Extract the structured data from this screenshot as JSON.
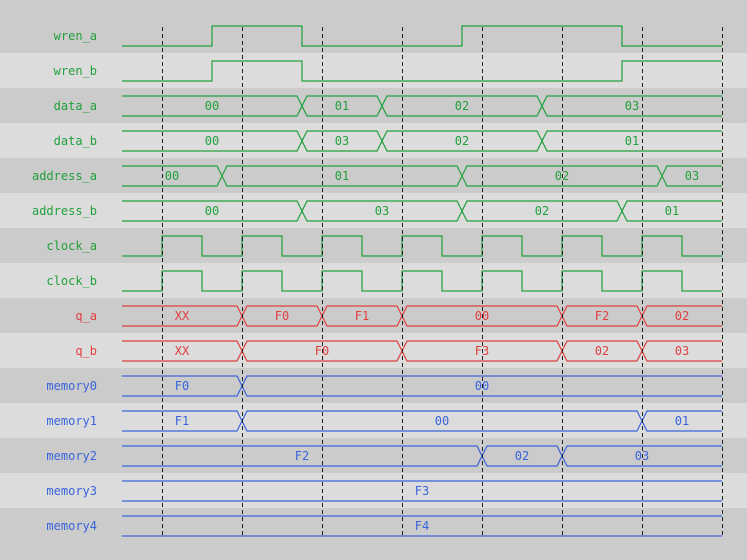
{
  "time_range": [
    0,
    15
  ],
  "grid_times": [
    1,
    3,
    5,
    7,
    9,
    11,
    13,
    15
  ],
  "colors": {
    "control": "#22a03c",
    "output": "#e04040",
    "memory": "#3a64dc",
    "row_dark": "#cbcbcb",
    "row_light": "#dcdcdc",
    "grid": "#202020"
  },
  "signals": [
    {
      "name": "wren_a",
      "group": "control",
      "type": "bit",
      "edges": [
        [
          0,
          0
        ],
        [
          2.25,
          1
        ],
        [
          4.5,
          0
        ],
        [
          8.5,
          1
        ],
        [
          12.5,
          0
        ]
      ]
    },
    {
      "name": "wren_b",
      "group": "control",
      "type": "bit",
      "edges": [
        [
          0,
          0
        ],
        [
          2.25,
          1
        ],
        [
          4.5,
          0
        ],
        [
          12.5,
          1
        ]
      ]
    },
    {
      "name": "data_a",
      "group": "control",
      "type": "bus",
      "segments": [
        [
          0,
          4.5,
          "00"
        ],
        [
          4.5,
          6.5,
          "01"
        ],
        [
          6.5,
          10.5,
          "02"
        ],
        [
          10.5,
          15,
          "03"
        ]
      ]
    },
    {
      "name": "data_b",
      "group": "control",
      "type": "bus",
      "segments": [
        [
          0,
          4.5,
          "00"
        ],
        [
          4.5,
          6.5,
          "03"
        ],
        [
          6.5,
          10.5,
          "02"
        ],
        [
          10.5,
          15,
          "01"
        ]
      ]
    },
    {
      "name": "address_a",
      "group": "control",
      "type": "bus",
      "segments": [
        [
          0,
          2.5,
          "00"
        ],
        [
          2.5,
          8.5,
          "01"
        ],
        [
          8.5,
          13.5,
          "02"
        ],
        [
          13.5,
          15,
          "03"
        ]
      ]
    },
    {
      "name": "address_b",
      "group": "control",
      "type": "bus",
      "segments": [
        [
          0,
          4.5,
          "00"
        ],
        [
          4.5,
          8.5,
          "03"
        ],
        [
          8.5,
          12.5,
          "02"
        ],
        [
          12.5,
          15,
          "01"
        ]
      ]
    },
    {
      "name": "clock_a",
      "group": "control",
      "type": "bit",
      "edges": [
        [
          0,
          0
        ],
        [
          1,
          1
        ],
        [
          2,
          0
        ],
        [
          3,
          1
        ],
        [
          4,
          0
        ],
        [
          5,
          1
        ],
        [
          6,
          0
        ],
        [
          7,
          1
        ],
        [
          8,
          0
        ],
        [
          9,
          1
        ],
        [
          10,
          0
        ],
        [
          11,
          1
        ],
        [
          12,
          0
        ],
        [
          13,
          1
        ],
        [
          14,
          0
        ]
      ]
    },
    {
      "name": "clock_b",
      "group": "control",
      "type": "bit",
      "edges": [
        [
          0,
          0
        ],
        [
          1,
          1
        ],
        [
          2,
          0
        ],
        [
          3,
          1
        ],
        [
          4,
          0
        ],
        [
          5,
          1
        ],
        [
          6,
          0
        ],
        [
          7,
          1
        ],
        [
          8,
          0
        ],
        [
          9,
          1
        ],
        [
          10,
          0
        ],
        [
          11,
          1
        ],
        [
          12,
          0
        ],
        [
          13,
          1
        ],
        [
          14,
          0
        ]
      ]
    },
    {
      "name": "q_a",
      "group": "output",
      "type": "bus",
      "segments": [
        [
          0,
          3,
          "XX"
        ],
        [
          3,
          5,
          "F0"
        ],
        [
          5,
          7,
          "F1"
        ],
        [
          7,
          11,
          "00"
        ],
        [
          11,
          13,
          "F2"
        ],
        [
          13,
          15,
          "02"
        ]
      ]
    },
    {
      "name": "q_b",
      "group": "output",
      "type": "bus",
      "segments": [
        [
          0,
          3,
          "XX"
        ],
        [
          3,
          7,
          "F0"
        ],
        [
          7,
          11,
          "F3"
        ],
        [
          11,
          13,
          "02"
        ],
        [
          13,
          15,
          "03"
        ]
      ]
    },
    {
      "name": "memory0",
      "group": "memory",
      "type": "bus",
      "segments": [
        [
          0,
          3,
          "F0"
        ],
        [
          3,
          15,
          "00"
        ]
      ]
    },
    {
      "name": "memory1",
      "group": "memory",
      "type": "bus",
      "segments": [
        [
          0,
          3,
          "F1"
        ],
        [
          3,
          13,
          "00"
        ],
        [
          13,
          15,
          "01"
        ]
      ]
    },
    {
      "name": "memory2",
      "group": "memory",
      "type": "bus",
      "segments": [
        [
          0,
          9,
          "F2"
        ],
        [
          9,
          11,
          "02"
        ],
        [
          11,
          15,
          "03"
        ]
      ]
    },
    {
      "name": "memory3",
      "group": "memory",
      "type": "bus",
      "segments": [
        [
          0,
          15,
          "F3"
        ]
      ]
    },
    {
      "name": "memory4",
      "group": "memory",
      "type": "bus",
      "segments": [
        [
          0,
          15,
          "F4"
        ]
      ]
    }
  ]
}
